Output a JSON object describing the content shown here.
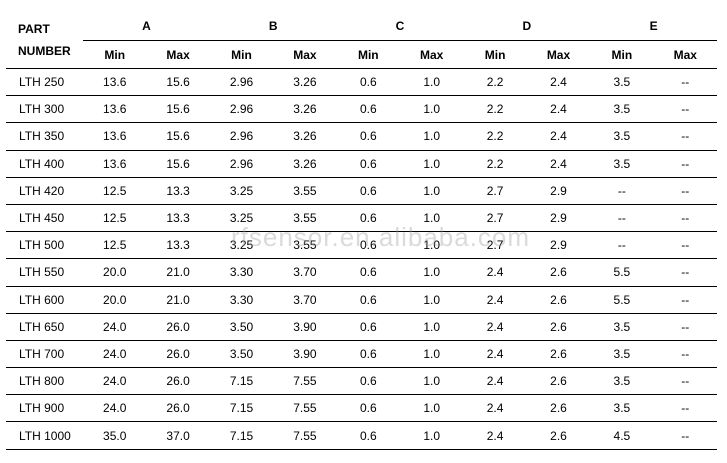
{
  "header": {
    "part_number": [
      "PART",
      "NUMBER"
    ],
    "groups": [
      "A",
      "B",
      "C",
      "D",
      "E"
    ],
    "sub": [
      "Min",
      "Max"
    ]
  },
  "rows": [
    {
      "part": "LTH 250",
      "values": [
        "13.6",
        "15.6",
        "2.96",
        "3.26",
        "0.6",
        "1.0",
        "2.2",
        "2.4",
        "3.5",
        "--"
      ]
    },
    {
      "part": "LTH 300",
      "values": [
        "13.6",
        "15.6",
        "2.96",
        "3.26",
        "0.6",
        "1.0",
        "2.2",
        "2.4",
        "3.5",
        "--"
      ]
    },
    {
      "part": "LTH 350",
      "values": [
        "13.6",
        "15.6",
        "2.96",
        "3.26",
        "0.6",
        "1.0",
        "2.2",
        "2.4",
        "3.5",
        "--"
      ]
    },
    {
      "part": "LTH 400",
      "values": [
        "13.6",
        "15.6",
        "2.96",
        "3.26",
        "0.6",
        "1.0",
        "2.2",
        "2.4",
        "3.5",
        "--"
      ]
    },
    {
      "part": "LTH 420",
      "values": [
        "12.5",
        "13.3",
        "3.25",
        "3.55",
        "0.6",
        "1.0",
        "2.7",
        "2.9",
        "--",
        "--"
      ]
    },
    {
      "part": "LTH 450",
      "values": [
        "12.5",
        "13.3",
        "3.25",
        "3.55",
        "0.6",
        "1.0",
        "2.7",
        "2.9",
        "--",
        "--"
      ]
    },
    {
      "part": "LTH 500",
      "values": [
        "12.5",
        "13.3",
        "3.25",
        "3.55",
        "0.6",
        "1.0",
        "2.7",
        "2.9",
        "--",
        "--"
      ]
    },
    {
      "part": "LTH 550",
      "values": [
        "20.0",
        "21.0",
        "3.30",
        "3.70",
        "0.6",
        "1.0",
        "2.4",
        "2.6",
        "5.5",
        "--"
      ]
    },
    {
      "part": "LTH 600",
      "values": [
        "20.0",
        "21.0",
        "3.30",
        "3.70",
        "0.6",
        "1.0",
        "2.4",
        "2.6",
        "5.5",
        "--"
      ]
    },
    {
      "part": "LTH 650",
      "values": [
        "24.0",
        "26.0",
        "3.50",
        "3.90",
        "0.6",
        "1.0",
        "2.4",
        "2.6",
        "3.5",
        "--"
      ]
    },
    {
      "part": "LTH 700",
      "values": [
        "24.0",
        "26.0",
        "3.50",
        "3.90",
        "0.6",
        "1.0",
        "2.4",
        "2.6",
        "3.5",
        "--"
      ]
    },
    {
      "part": "LTH 800",
      "values": [
        "24.0",
        "26.0",
        "7.15",
        "7.55",
        "0.6",
        "1.0",
        "2.4",
        "2.6",
        "3.5",
        "--"
      ]
    },
    {
      "part": "LTH 900",
      "values": [
        "24.0",
        "26.0",
        "7.15",
        "7.55",
        "0.6",
        "1.0",
        "2.4",
        "2.6",
        "3.5",
        "--"
      ]
    },
    {
      "part": "LTH 1000",
      "values": [
        "35.0",
        "37.0",
        "7.15",
        "7.55",
        "0.6",
        "1.0",
        "2.4",
        "2.6",
        "4.5",
        "--"
      ]
    }
  ],
  "watermark": "rfsensor.en.alibaba.com"
}
